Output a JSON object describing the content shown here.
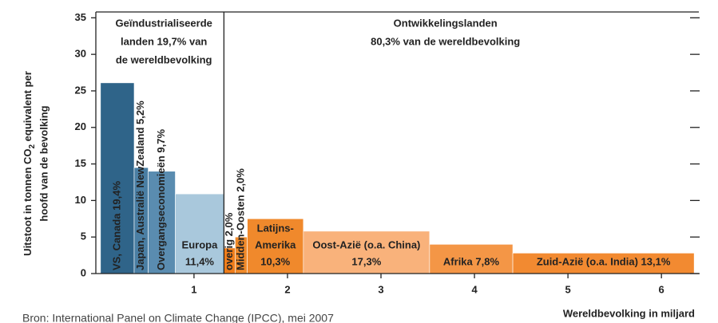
{
  "chart_data": {
    "type": "bar",
    "y_label": {
      "before": "Uitstoot in tonnen CO",
      "sub": "2",
      "after": " equivalent per",
      "line2": "hoofd van de bevolking"
    },
    "x_label": "Wereldbevolking in miljard",
    "source": "Bron: International Panel on Climate Change (IPCC), mei 2007",
    "regions": [
      {
        "lines": [
          "Geïndustrialiseerde",
          "landen 19,7% van",
          "de wereldbevolking"
        ]
      },
      {
        "lines": [
          "Ontwikkelingslanden",
          "80,3% van de wereldbevolking"
        ]
      }
    ],
    "bins": [
      0,
      0.36,
      0.51,
      0.8,
      1.32,
      1.44,
      1.57,
      2.17,
      3.52,
      4.41,
      6.35
    ],
    "values": [
      26.1,
      14.5,
      14.0,
      10.9,
      3.5,
      5.0,
      7.5,
      5.8,
      4.0,
      2.8
    ],
    "labels": [
      [
        "VS, Canada 19,4%"
      ],
      [
        "Japan, Australië NewZealand 5,2%"
      ],
      [
        "Overgangseconomieën 9,7%"
      ],
      [
        "Europa",
        "11,4%"
      ],
      [
        "overig 2,0%"
      ],
      [
        "Midden-Oosten 2,0%"
      ],
      [
        "Latijns-",
        "Amerika",
        "10,3%"
      ],
      [
        "Oost-Azië (o.a. China)",
        "17,3%"
      ],
      [
        "Afrika 7,8%"
      ],
      [
        "Zuid-Azië (o.a. India) 13,1%"
      ]
    ],
    "label_rotated": [
      true,
      true,
      true,
      false,
      true,
      true,
      false,
      false,
      false,
      false
    ],
    "colors": [
      "#2f6489",
      "#4a7ea3",
      "#5a8cb0",
      "#a9c8dc",
      "#ef7d1b",
      "#f08a2a",
      "#f0892c",
      "#f9b27b",
      "#f49646",
      "#f28a31"
    ],
    "xlim": [
      -0.05,
      6.4
    ],
    "xticks": [
      1,
      2,
      3,
      4,
      5,
      6
    ],
    "ylim": [
      0,
      35.8
    ],
    "yticks": [
      0,
      5,
      10,
      15,
      20,
      25,
      30,
      35
    ]
  }
}
